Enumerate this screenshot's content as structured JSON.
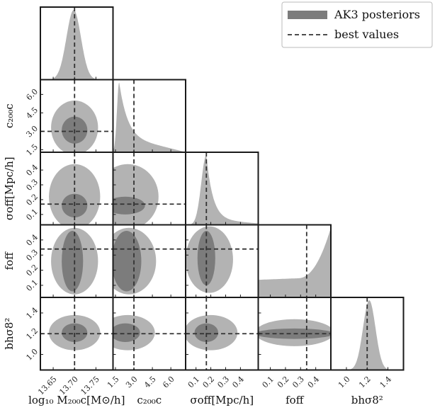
{
  "chart_data": {
    "type": "corner",
    "parameters": [
      {
        "id": "M",
        "axis_label": "log₁₀ M₂₀₀c[M⊙/h]",
        "row_label": "",
        "best": 13.7,
        "range": [
          13.62,
          13.79
        ],
        "ticks": [
          13.65,
          13.7,
          13.75
        ],
        "tick_labels": [
          "13.65",
          "13.70",
          "13.75"
        ]
      },
      {
        "id": "c",
        "axis_label": "c₂₀₀c",
        "row_label": "c₂₀₀c",
        "best": 3.0,
        "range": [
          1.3,
          7.2
        ],
        "ticks": [
          1.5,
          3.0,
          4.5,
          6.0
        ],
        "tick_labels": [
          "1.5",
          "3.0",
          "4.5",
          "6.0"
        ]
      },
      {
        "id": "s",
        "axis_label": "σoff[Mpc/h]",
        "row_label": "σoff[Mpc/h]",
        "best": 0.17,
        "range": [
          0.03,
          0.52
        ],
        "ticks": [
          0.1,
          0.2,
          0.3,
          0.4
        ],
        "tick_labels": [
          "0.1",
          "0.2",
          "0.3",
          "0.4"
        ]
      },
      {
        "id": "f",
        "axis_label": "foff",
        "row_label": "foff",
        "best": 0.34,
        "range": [
          0.02,
          0.5
        ],
        "ticks": [
          0.1,
          0.2,
          0.3,
          0.4
        ],
        "tick_labels": [
          "0.1",
          "0.2",
          "0.3",
          "0.4"
        ]
      },
      {
        "id": "b",
        "axis_label": "bhσ8²",
        "row_label": "bhσ8²",
        "best": 1.2,
        "range": [
          0.85,
          1.55
        ],
        "ticks": [
          1.0,
          1.2,
          1.4
        ],
        "tick_labels": [
          "1.0",
          "1.2",
          "1.4"
        ]
      }
    ],
    "marginals": [
      {
        "param": "M",
        "shape": "gaussian",
        "mean": 13.698,
        "sd": 0.017
      },
      {
        "param": "c",
        "shape": "peak-left-long-tail",
        "peak": 1.8
      },
      {
        "param": "s",
        "shape": "peak-long-tail",
        "peak": 0.17
      },
      {
        "param": "f",
        "shape": "rising-right",
        "level": 0.25
      },
      {
        "param": "b",
        "shape": "gaussian",
        "mean": 1.22,
        "sd": 0.06
      }
    ],
    "credible_regions": [
      {
        "x": "M",
        "y": "c",
        "outer": {
          "cx": 13.7,
          "cy": 3.3,
          "rx": 0.055,
          "ry": 2.2
        },
        "inner": {
          "cx": 13.7,
          "cy": 3.1,
          "rx": 0.03,
          "ry": 1.1
        }
      },
      {
        "x": "M",
        "y": "s",
        "outer": {
          "cx": 13.7,
          "cy": 0.22,
          "rx": 0.06,
          "ry": 0.22
        },
        "inner": {
          "cx": 13.7,
          "cy": 0.16,
          "rx": 0.03,
          "ry": 0.08
        }
      },
      {
        "x": "M",
        "y": "f",
        "outer": {
          "cx": 13.7,
          "cy": 0.26,
          "rx": 0.055,
          "ry": 0.22
        },
        "inner": {
          "cx": 13.695,
          "cy": 0.26,
          "rx": 0.025,
          "ry": 0.2
        }
      },
      {
        "x": "M",
        "y": "b",
        "outer": {
          "cx": 13.7,
          "cy": 1.21,
          "rx": 0.06,
          "ry": 0.17
        },
        "inner": {
          "cx": 13.7,
          "cy": 1.21,
          "rx": 0.03,
          "ry": 0.09
        }
      },
      {
        "x": "c",
        "y": "s",
        "outer": {
          "cx": 2.5,
          "cy": 0.22,
          "rx": 2.5,
          "ry": 0.22
        },
        "inner": {
          "cx": 2.3,
          "cy": 0.16,
          "rx": 1.6,
          "ry": 0.06
        }
      },
      {
        "x": "c",
        "y": "f",
        "outer": {
          "cx": 2.6,
          "cy": 0.26,
          "rx": 2.2,
          "ry": 0.22
        },
        "inner": {
          "cx": 2.4,
          "cy": 0.26,
          "rx": 1.2,
          "ry": 0.2
        }
      },
      {
        "x": "c",
        "y": "b",
        "outer": {
          "cx": 2.5,
          "cy": 1.21,
          "rx": 2.2,
          "ry": 0.17
        },
        "inner": {
          "cx": 2.3,
          "cy": 1.21,
          "rx": 1.2,
          "ry": 0.09
        }
      },
      {
        "x": "s",
        "y": "f",
        "outer": {
          "cx": 0.19,
          "cy": 0.27,
          "rx": 0.16,
          "ry": 0.22
        },
        "inner": {
          "cx": 0.17,
          "cy": 0.28,
          "rx": 0.06,
          "ry": 0.18
        }
      },
      {
        "x": "s",
        "y": "b",
        "outer": {
          "cx": 0.2,
          "cy": 1.21,
          "rx": 0.18,
          "ry": 0.17
        },
        "inner": {
          "cx": 0.17,
          "cy": 1.21,
          "rx": 0.08,
          "ry": 0.09
        }
      },
      {
        "x": "f",
        "y": "b",
        "outer": {
          "cx": 0.26,
          "cy": 1.21,
          "rx": 0.26,
          "ry": 0.13
        },
        "inner": {
          "cx": 0.26,
          "cy": 1.2,
          "rx": 0.26,
          "ry": 0.05
        }
      }
    ],
    "legend": {
      "position": "top-right",
      "entries": [
        {
          "label": "AK3 posteriors",
          "style": "filled-band",
          "color": "#7c7c7c"
        },
        {
          "label": "best values",
          "style": "dashed-line",
          "color": "#333333"
        }
      ]
    },
    "colors": {
      "outer": "#b3b3b3",
      "inner": "#7c7c7c",
      "best": "#333333"
    }
  }
}
